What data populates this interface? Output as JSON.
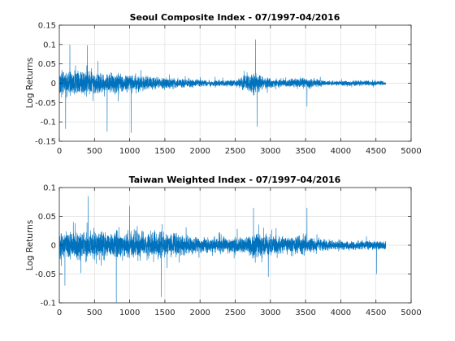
{
  "chart_data": [
    {
      "type": "line",
      "title": "Seoul Composite Index - 07/1997-04/2016",
      "xlabel": "",
      "ylabel": "Log Returns",
      "xlim": [
        0,
        5000
      ],
      "ylim": [
        -0.15,
        0.15
      ],
      "xticks": [
        "0",
        "500",
        "1000",
        "1500",
        "2000",
        "2500",
        "3000",
        "3500",
        "4000",
        "4500",
        "5000"
      ],
      "yticks": [
        "-0.15",
        "-0.1",
        "-0.05",
        "0",
        "0.05",
        "0.1",
        "0.15"
      ],
      "grid": true,
      "color": "#0072bd",
      "n_points": 4640,
      "volatility_profile": [
        {
          "x": 0,
          "amplitude": 0.04
        },
        {
          "x": 300,
          "amplitude": 0.045
        },
        {
          "x": 700,
          "amplitude": 0.035
        },
        {
          "x": 1000,
          "amplitude": 0.03
        },
        {
          "x": 1500,
          "amplitude": 0.02
        },
        {
          "x": 2000,
          "amplitude": 0.012
        },
        {
          "x": 2500,
          "amplitude": 0.011
        },
        {
          "x": 2750,
          "amplitude": 0.035
        },
        {
          "x": 2900,
          "amplitude": 0.025
        },
        {
          "x": 3100,
          "amplitude": 0.011
        },
        {
          "x": 3550,
          "amplitude": 0.02
        },
        {
          "x": 3800,
          "amplitude": 0.009
        },
        {
          "x": 4640,
          "amplitude": 0.009
        }
      ],
      "extremes": [
        {
          "x": 90,
          "y": -0.118
        },
        {
          "x": 150,
          "y": 0.1
        },
        {
          "x": 400,
          "y": 0.098
        },
        {
          "x": 680,
          "y": -0.125
        },
        {
          "x": 1020,
          "y": -0.128
        },
        {
          "x": 2790,
          "y": 0.113
        },
        {
          "x": 2810,
          "y": -0.112
        },
        {
          "x": 3520,
          "y": -0.06
        }
      ]
    },
    {
      "type": "line",
      "title": "Taiwan Weighted Index - 07/1997-04/2016",
      "xlabel": "",
      "ylabel": "Log Returns",
      "xlim": [
        0,
        5000
      ],
      "ylim": [
        -0.1,
        0.1
      ],
      "xticks": [
        "0",
        "500",
        "1000",
        "1500",
        "2000",
        "2500",
        "3000",
        "3500",
        "4000",
        "4500",
        "5000"
      ],
      "yticks": [
        "-0.1",
        "-0.05",
        "0",
        "0.05",
        "0.1"
      ],
      "grid": true,
      "color": "#0072bd",
      "n_points": 4640,
      "volatility_profile": [
        {
          "x": 0,
          "amplitude": 0.03
        },
        {
          "x": 400,
          "amplitude": 0.035
        },
        {
          "x": 900,
          "amplitude": 0.03
        },
        {
          "x": 1500,
          "amplitude": 0.03
        },
        {
          "x": 2000,
          "amplitude": 0.018
        },
        {
          "x": 2600,
          "amplitude": 0.018
        },
        {
          "x": 2800,
          "amplitude": 0.03
        },
        {
          "x": 3100,
          "amplitude": 0.02
        },
        {
          "x": 3500,
          "amplitude": 0.02
        },
        {
          "x": 3800,
          "amplitude": 0.012
        },
        {
          "x": 4640,
          "amplitude": 0.01
        }
      ],
      "extremes": [
        {
          "x": 80,
          "y": -0.07
        },
        {
          "x": 410,
          "y": 0.085
        },
        {
          "x": 810,
          "y": -0.1
        },
        {
          "x": 1000,
          "y": 0.068
        },
        {
          "x": 1450,
          "y": -0.09
        },
        {
          "x": 2760,
          "y": 0.065
        },
        {
          "x": 2970,
          "y": -0.055
        },
        {
          "x": 3520,
          "y": 0.065
        },
        {
          "x": 4510,
          "y": -0.05
        }
      ]
    }
  ]
}
